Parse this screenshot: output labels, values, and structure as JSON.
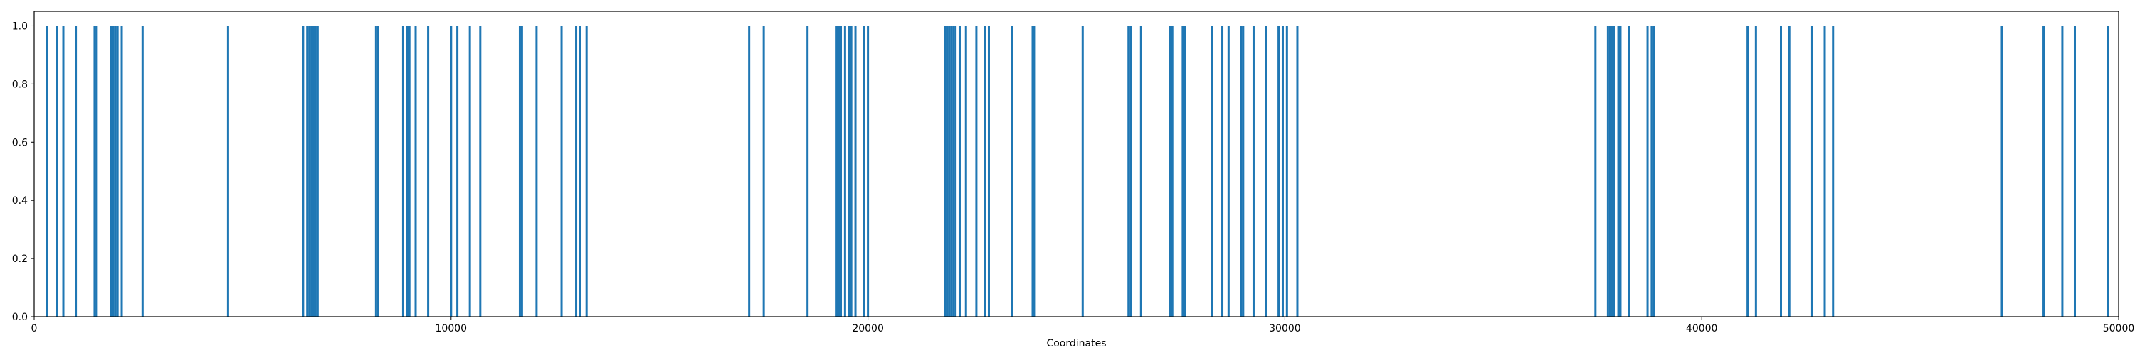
{
  "chart_data": {
    "type": "bar",
    "title": "",
    "xlabel": "Coordinates",
    "ylabel": "",
    "xlim": [
      0,
      50000
    ],
    "ylim": [
      0.0,
      1.05
    ],
    "grid": false,
    "bar_color": "#1f77b4",
    "xticks": [
      0,
      10000,
      20000,
      30000,
      40000,
      50000
    ],
    "xtick_labels": [
      "0",
      "10000",
      "20000",
      "30000",
      "40000",
      "50000"
    ],
    "yticks": [
      0.0,
      0.2,
      0.4,
      0.6,
      0.8,
      1.0
    ],
    "ytick_labels": [
      "0.0",
      "0.2",
      "0.4",
      "0.6",
      "0.8",
      "1.0"
    ],
    "x": [
      300,
      550,
      700,
      1000,
      1450,
      1500,
      1850,
      1900,
      1950,
      2000,
      2100,
      2600,
      4650,
      6450,
      6550,
      6600,
      6650,
      6700,
      6750,
      6800,
      8200,
      8250,
      8850,
      8950,
      9000,
      9150,
      9450,
      10000,
      10150,
      10450,
      10700,
      11650,
      11700,
      12050,
      12650,
      13000,
      13100,
      13250,
      17150,
      17500,
      18550,
      19250,
      19300,
      19350,
      19450,
      19550,
      19600,
      19700,
      19900,
      20000,
      21850,
      21900,
      21950,
      22000,
      22050,
      22100,
      22200,
      22350,
      22600,
      22800,
      22900,
      23450,
      23950,
      24000,
      25150,
      26250,
      26300,
      26550,
      27250,
      27300,
      27550,
      27600,
      28250,
      28500,
      28650,
      28950,
      29000,
      29250,
      29550,
      29850,
      29950,
      30050,
      30300,
      37450,
      37750,
      37800,
      37850,
      37900,
      38000,
      38050,
      38250,
      38700,
      38800,
      38850,
      41100,
      41300,
      41900,
      42100,
      42650,
      42950,
      43150,
      47200,
      48200,
      48650,
      48950,
      49750
    ],
    "values": [
      1,
      1,
      1,
      1,
      1,
      1,
      1,
      1,
      1,
      1,
      1,
      1,
      1,
      1,
      1,
      1,
      1,
      1,
      1,
      1,
      1,
      1,
      1,
      1,
      1,
      1,
      1,
      1,
      1,
      1,
      1,
      1,
      1,
      1,
      1,
      1,
      1,
      1,
      1,
      1,
      1,
      1,
      1,
      1,
      1,
      1,
      1,
      1,
      1,
      1,
      1,
      1,
      1,
      1,
      1,
      1,
      1,
      1,
      1,
      1,
      1,
      1,
      1,
      1,
      1,
      1,
      1,
      1,
      1,
      1,
      1,
      1,
      1,
      1,
      1,
      1,
      1,
      1,
      1,
      1,
      1,
      1,
      1,
      1,
      1,
      1,
      1,
      1,
      1,
      1,
      1,
      1,
      1,
      1,
      1,
      1,
      1,
      1,
      1,
      1,
      1,
      1,
      1,
      1,
      1,
      1
    ]
  }
}
